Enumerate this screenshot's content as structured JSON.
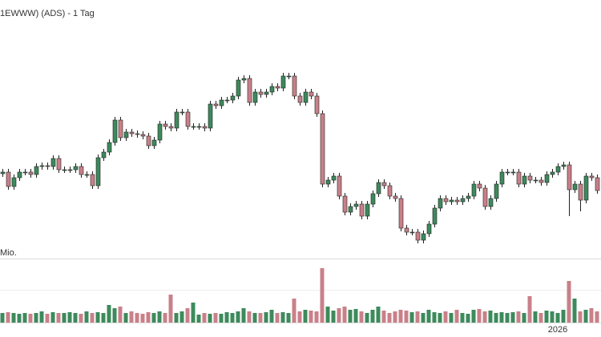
{
  "chart_data": {
    "type": "candlestick",
    "title": "1EWWW) (ADS) - 1 Tag",
    "volume_label": "Mio.",
    "categories": [
      null,
      null,
      null,
      null,
      null,
      null,
      null,
      null,
      null,
      null,
      null,
      null,
      null,
      null,
      null,
      null,
      null,
      null,
      null,
      null,
      null,
      null,
      null,
      null,
      null,
      null,
      null,
      null,
      null,
      null,
      null,
      null,
      null,
      null,
      null,
      null,
      null,
      null,
      null,
      null,
      null,
      null,
      null,
      null,
      null,
      null,
      null,
      null,
      null,
      null,
      null,
      null,
      null,
      null,
      null,
      null,
      null,
      null,
      null,
      null,
      null,
      null,
      null,
      null,
      null,
      null,
      null,
      null,
      null,
      null,
      null,
      null,
      null,
      null,
      null,
      null,
      null,
      null,
      null,
      null,
      null,
      null,
      null,
      null,
      null,
      null,
      null,
      null,
      null,
      null,
      null,
      null,
      null,
      null,
      null,
      null,
      null,
      null,
      null,
      "2026",
      null,
      null,
      null,
      null,
      null,
      null,
      null
    ],
    "open": [
      113,
      115,
      97,
      108,
      115,
      115,
      112,
      122,
      123,
      122,
      132,
      118,
      118,
      118,
      122,
      112,
      112,
      98,
      133,
      140,
      152,
      180,
      158,
      165,
      163,
      162,
      160,
      148,
      155,
      175,
      172,
      170,
      190,
      190,
      172,
      172,
      172,
      170,
      200,
      198,
      205,
      205,
      210,
      230,
      232,
      202,
      215,
      212,
      215,
      222,
      220,
      235,
      235,
      210,
      202,
      215,
      210,
      188,
      100,
      105,
      110,
      85,
      65,
      72,
      75,
      60,
      75,
      88,
      102,
      98,
      85,
      82,
      45,
      40,
      40,
      30,
      38,
      50,
      70,
      82,
      78,
      80,
      78,
      82,
      85,
      100,
      95,
      72,
      82,
      100,
      115,
      115,
      115,
      100,
      110,
      105,
      105,
      102,
      112,
      115,
      122,
      124,
      93,
      100,
      80,
      110,
      108
    ],
    "high": [
      119,
      119,
      112,
      119,
      119,
      119,
      126,
      127,
      127,
      136,
      136,
      122,
      122,
      126,
      126,
      116,
      116,
      137,
      144,
      156,
      184,
      184,
      169,
      169,
      167,
      166,
      164,
      159,
      179,
      179,
      176,
      194,
      194,
      194,
      176,
      176,
      176,
      204,
      204,
      209,
      209,
      214,
      234,
      236,
      236,
      219,
      219,
      219,
      226,
      226,
      239,
      239,
      239,
      214,
      219,
      219,
      214,
      192,
      109,
      114,
      114,
      89,
      76,
      79,
      79,
      79,
      92,
      106,
      106,
      102,
      89,
      86,
      49,
      44,
      44,
      42,
      54,
      74,
      86,
      86,
      84,
      84,
      86,
      89,
      104,
      104,
      99,
      86,
      104,
      119,
      119,
      119,
      119,
      114,
      114,
      109,
      109,
      116,
      119,
      126,
      128,
      128,
      104,
      104,
      114,
      114,
      112
    ],
    "low": [
      109,
      93,
      93,
      104,
      111,
      108,
      108,
      118,
      118,
      118,
      114,
      114,
      114,
      114,
      108,
      108,
      94,
      94,
      129,
      136,
      148,
      154,
      154,
      159,
      158,
      156,
      144,
      144,
      151,
      168,
      166,
      166,
      186,
      168,
      168,
      168,
      166,
      166,
      194,
      194,
      201,
      201,
      206,
      226,
      198,
      198,
      208,
      208,
      211,
      216,
      216,
      231,
      206,
      198,
      198,
      206,
      184,
      96,
      96,
      101,
      81,
      61,
      61,
      68,
      56,
      56,
      71,
      84,
      94,
      81,
      78,
      41,
      36,
      36,
      26,
      26,
      34,
      46,
      66,
      74,
      74,
      74,
      74,
      78,
      81,
      91,
      68,
      68,
      78,
      96,
      111,
      111,
      96,
      96,
      101,
      101,
      98,
      98,
      108,
      111,
      118,
      60,
      89,
      66,
      76,
      104,
      88
    ],
    "close": [
      115,
      97,
      108,
      115,
      115,
      112,
      122,
      123,
      122,
      132,
      118,
      118,
      118,
      122,
      112,
      112,
      98,
      133,
      140,
      152,
      180,
      158,
      165,
      163,
      162,
      160,
      148,
      155,
      175,
      172,
      170,
      190,
      190,
      172,
      172,
      172,
      170,
      200,
      198,
      205,
      205,
      210,
      230,
      232,
      202,
      215,
      212,
      215,
      222,
      220,
      235,
      235,
      210,
      202,
      215,
      210,
      188,
      100,
      105,
      110,
      85,
      65,
      72,
      75,
      60,
      75,
      88,
      102,
      98,
      85,
      82,
      45,
      40,
      40,
      30,
      38,
      50,
      70,
      82,
      78,
      80,
      78,
      82,
      85,
      100,
      95,
      72,
      82,
      100,
      115,
      115,
      115,
      100,
      110,
      105,
      105,
      102,
      112,
      115,
      122,
      124,
      93,
      100,
      80,
      110,
      108,
      92
    ],
    "volume": [
      12,
      13,
      12,
      11,
      12,
      11,
      12,
      14,
      11,
      13,
      12,
      12,
      13,
      12,
      11,
      14,
      12,
      13,
      12,
      22,
      18,
      20,
      12,
      14,
      12,
      11,
      13,
      12,
      14,
      12,
      35,
      12,
      14,
      18,
      25,
      10,
      12,
      11,
      12,
      11,
      13,
      12,
      14,
      18,
      14,
      12,
      12,
      13,
      16,
      12,
      13,
      12,
      30,
      14,
      16,
      15,
      14,
      68,
      20,
      15,
      18,
      20,
      16,
      17,
      14,
      12,
      16,
      20,
      15,
      12,
      14,
      16,
      15,
      13,
      14,
      12,
      16,
      13,
      12,
      14,
      12,
      16,
      12,
      11,
      16,
      17,
      14,
      15,
      12,
      13,
      12,
      13,
      14,
      12,
      33,
      14,
      12,
      15,
      14,
      12,
      16,
      52,
      30,
      14,
      16,
      18,
      14
    ],
    "ylim": [
      0,
      300
    ],
    "volume_ylim": [
      0,
      75
    ],
    "up_color": "#3d8a5c",
    "down_color": "#c98089",
    "wick_color": "#222222"
  }
}
